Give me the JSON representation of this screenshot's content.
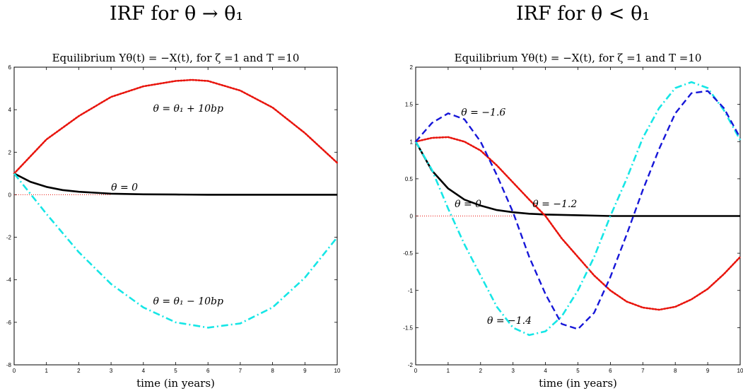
{
  "panels": {
    "left": {
      "heading": "IRF for θ → θ₁"
    },
    "right": {
      "heading": "IRF for θ < θ₁"
    }
  },
  "chart_data": [
    {
      "type": "line",
      "title": "Equilibrium Yθ(t) = −X(t), for ζ =1 and T =10",
      "xlabel": "time (in years)",
      "ylabel": "",
      "xlim": [
        0,
        10
      ],
      "ylim": [
        -8,
        6
      ],
      "xticks": [
        0,
        1,
        2,
        3,
        4,
        5,
        6,
        7,
        8,
        9,
        10
      ],
      "yticks": [
        -8,
        -6,
        -4,
        -2,
        0,
        2,
        4,
        6
      ],
      "grid": false,
      "colors": {
        "black": "#000000",
        "red": "#e8140c",
        "cyan": "#16e6e6"
      },
      "series": [
        {
          "label": "θ = 0",
          "color": "#000000",
          "style": "solid",
          "x": [
            0,
            0.5,
            1,
            1.5,
            2,
            3,
            4,
            5,
            6,
            7,
            8,
            9,
            10
          ],
          "y": [
            1,
            0.61,
            0.37,
            0.22,
            0.14,
            0.05,
            0.02,
            0.01,
            0,
            0,
            0,
            0,
            0
          ]
        },
        {
          "label": "θ = θ₁ + 10bp",
          "color": "#e8140c",
          "style": "dotted",
          "x": [
            0,
            1,
            2,
            3,
            4,
            5,
            5.5,
            6,
            7,
            8,
            9,
            10
          ],
          "y": [
            1,
            2.6,
            3.7,
            4.6,
            5.1,
            5.35,
            5.4,
            5.35,
            4.9,
            4.1,
            2.9,
            1.5
          ]
        },
        {
          "label": "θ = θ₁ − 10bp",
          "color": "#16e6e6",
          "style": "dashdot",
          "x": [
            0,
            1,
            2,
            3,
            4,
            5,
            6,
            7,
            8,
            9,
            10
          ],
          "y": [
            1,
            -0.9,
            -2.7,
            -4.2,
            -5.3,
            -6.0,
            -6.25,
            -6.05,
            -5.3,
            -3.9,
            -2.0
          ]
        },
        {
          "label": "",
          "color": "#e8140c",
          "style": "fine-dotted",
          "x": [
            0,
            3
          ],
          "y": [
            0,
            0
          ]
        }
      ]
    },
    {
      "type": "line",
      "title": "Equilibrium Yθ(t) = −X(t), for ζ =1 and T =10",
      "xlabel": "time (in years)",
      "ylabel": "",
      "xlim": [
        0,
        10
      ],
      "ylim": [
        -2,
        2
      ],
      "xticks": [
        0,
        1,
        2,
        3,
        4,
        5,
        6,
        7,
        8,
        9,
        10
      ],
      "yticks": [
        -2,
        -1.5,
        -1,
        -0.5,
        0,
        0.5,
        1,
        1.5,
        2
      ],
      "grid": false,
      "colors": {
        "black": "#000000",
        "red": "#e8140c",
        "cyan": "#16e6e6",
        "blue": "#1616d8"
      },
      "series": [
        {
          "label": "θ = 0",
          "color": "#000000",
          "style": "solid",
          "x": [
            0,
            0.5,
            1,
            1.5,
            2,
            2.5,
            3,
            3.5,
            4,
            5,
            6,
            7,
            8,
            9,
            10
          ],
          "y": [
            1,
            0.61,
            0.37,
            0.22,
            0.14,
            0.08,
            0.05,
            0.03,
            0.02,
            0.01,
            0,
            0,
            0,
            0,
            0
          ]
        },
        {
          "label": "θ = −1.2",
          "color": "#e8140c",
          "style": "dotted",
          "x": [
            0,
            0.5,
            1,
            1.5,
            2,
            2.5,
            3,
            3.5,
            4,
            4.5,
            5,
            5.5,
            6,
            6.5,
            7,
            7.5,
            8,
            8.5,
            9,
            9.5,
            10
          ],
          "y": [
            1,
            1.05,
            1.06,
            1.0,
            0.88,
            0.68,
            0.45,
            0.22,
            0.0,
            -0.3,
            -0.55,
            -0.8,
            -1.0,
            -1.15,
            -1.23,
            -1.26,
            -1.22,
            -1.12,
            -0.98,
            -0.78,
            -0.55
          ]
        },
        {
          "label": "θ = −1.4",
          "color": "#16e6e6",
          "style": "dashdot",
          "x": [
            0,
            0.5,
            1,
            1.5,
            2,
            2.5,
            3,
            3.5,
            4,
            4.5,
            5,
            5.5,
            6,
            6.5,
            7,
            7.5,
            8,
            8.5,
            9,
            9.5,
            10
          ],
          "y": [
            1,
            0.62,
            0.1,
            -0.38,
            -0.8,
            -1.22,
            -1.5,
            -1.6,
            -1.55,
            -1.35,
            -1.0,
            -0.55,
            0.0,
            0.5,
            1.05,
            1.45,
            1.72,
            1.8,
            1.72,
            1.42,
            1.02
          ]
        },
        {
          "label": "θ = −1.6",
          "color": "#1616d8",
          "style": "dashed",
          "x": [
            0,
            0.5,
            1,
            1.5,
            2,
            2.5,
            3,
            3.5,
            4,
            4.5,
            5,
            5.5,
            6,
            6.5,
            7,
            7.5,
            8,
            8.5,
            9,
            9.5,
            10
          ],
          "y": [
            1,
            1.25,
            1.38,
            1.3,
            1.0,
            0.55,
            0.05,
            -0.55,
            -1.05,
            -1.45,
            -1.52,
            -1.3,
            -0.82,
            -0.25,
            0.35,
            0.9,
            1.38,
            1.65,
            1.68,
            1.45,
            1.05
          ]
        },
        {
          "label": "",
          "color": "#e8140c",
          "style": "fine-dotted",
          "x": [
            0,
            3
          ],
          "y": [
            0,
            0
          ]
        }
      ]
    }
  ]
}
